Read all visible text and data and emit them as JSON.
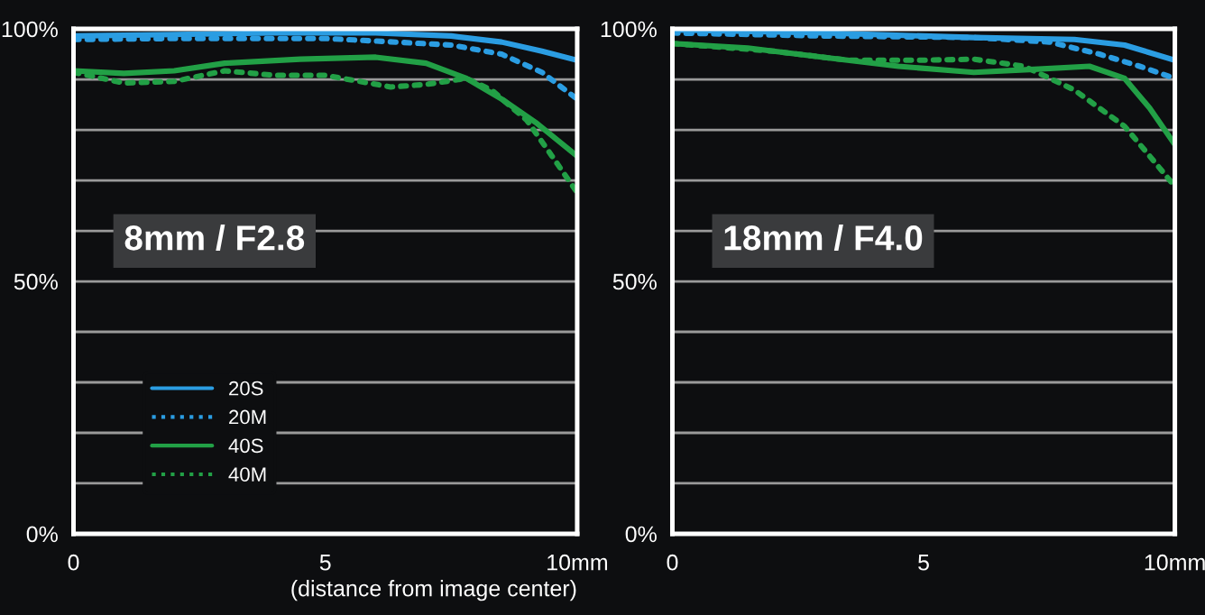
{
  "chart_data": [
    {
      "type": "line",
      "annotations": [
        "8mm / F2.8"
      ],
      "xlabel": "(distance from image center)",
      "xlim": [
        0,
        10
      ],
      "xticks": [
        0,
        5,
        {
          "value": 10,
          "label": "10mm"
        }
      ],
      "ylim": [
        0,
        100
      ],
      "yticks": [
        {
          "value": 0,
          "label": "0%"
        },
        {
          "value": 10,
          "label": null
        },
        {
          "value": 20,
          "label": null
        },
        {
          "value": 30,
          "label": null
        },
        {
          "value": 40,
          "label": null
        },
        {
          "value": 50,
          "label": "50%"
        },
        {
          "value": 60,
          "label": null
        },
        {
          "value": 70,
          "label": null
        },
        {
          "value": 80,
          "label": null
        },
        {
          "value": 90,
          "label": null
        },
        {
          "value": 100,
          "label": "100%"
        }
      ],
      "grid": "y",
      "legend": "bottom left",
      "series": [
        {
          "name": "20S",
          "color": "#2b9de2",
          "line_style": "solid",
          "x": [
            0,
            2,
            4,
            6,
            7.5,
            8.5,
            9.3,
            10
          ],
          "values": [
            98.6,
            98.9,
            99.2,
            99.2,
            98.6,
            97.4,
            95.6,
            93.8
          ]
        },
        {
          "name": "20M",
          "color": "#2b9de2",
          "line_style": "dotted",
          "x": [
            0,
            2,
            5,
            6,
            7.5,
            8.5,
            9.3,
            10
          ],
          "values": [
            97.9,
            98.1,
            98.1,
            97.6,
            96.8,
            95,
            91.4,
            86.1
          ]
        },
        {
          "name": "40S",
          "color": "#22a046",
          "line_style": "solid",
          "x": [
            0,
            1,
            2,
            3,
            4.5,
            6,
            7,
            7.8,
            8.5,
            9.2,
            10
          ],
          "values": [
            91.7,
            91.2,
            91.7,
            93.2,
            94,
            94.4,
            93.2,
            90.2,
            86.1,
            81.3,
            74.8
          ]
        },
        {
          "name": "40M",
          "color": "#22a046",
          "line_style": "dotted",
          "x": [
            0,
            1,
            2,
            3,
            4,
            5,
            6.3,
            7,
            7.8,
            8.3,
            9,
            9.5,
            10
          ],
          "values": [
            91.4,
            89.3,
            89.6,
            91.7,
            90.8,
            90.8,
            88.5,
            89,
            90.2,
            87.9,
            81.9,
            74.8,
            67.6
          ]
        }
      ]
    },
    {
      "type": "line",
      "annotations": [
        "18mm / F4.0"
      ],
      "xlim": [
        0,
        10
      ],
      "xticks": [
        0,
        5,
        {
          "value": 10,
          "label": "10mm"
        }
      ],
      "ylim": [
        0,
        100
      ],
      "yticks": [
        {
          "value": 0,
          "label": "0%"
        },
        {
          "value": 10,
          "label": null
        },
        {
          "value": 20,
          "label": null
        },
        {
          "value": 30,
          "label": null
        },
        {
          "value": 40,
          "label": null
        },
        {
          "value": 50,
          "label": "50%"
        },
        {
          "value": 60,
          "label": null
        },
        {
          "value": 70,
          "label": null
        },
        {
          "value": 80,
          "label": null
        },
        {
          "value": 90,
          "label": null
        },
        {
          "value": 100,
          "label": "100%"
        }
      ],
      "grid": "y",
      "series": [
        {
          "color": "#2b9de2",
          "line_style": "solid",
          "x": [
            0,
            3,
            6,
            8,
            9,
            10
          ],
          "values": [
            99.8,
            99.2,
            98.3,
            97.9,
            96.8,
            93.8
          ]
        },
        {
          "color": "#2b9de2",
          "line_style": "dotted",
          "x": [
            0,
            3,
            6,
            7.5,
            8.5,
            9.3,
            10
          ],
          "values": [
            99.2,
            98.6,
            98.3,
            97.4,
            95,
            92.6,
            90.2
          ]
        },
        {
          "color": "#22a046",
          "line_style": "solid",
          "x": [
            0,
            1.5,
            3,
            4.5,
            6,
            7.2,
            8.3,
            9,
            9.5,
            10
          ],
          "values": [
            97.1,
            96.2,
            94.4,
            92.6,
            91.4,
            92,
            92.6,
            90.2,
            84.3,
            77.1
          ]
        },
        {
          "color": "#22a046",
          "line_style": "dotted",
          "x": [
            0,
            2,
            3.5,
            5,
            6,
            7,
            8,
            9,
            9.5,
            10
          ],
          "values": [
            97.1,
            95.6,
            93.8,
            93.8,
            94,
            92.6,
            87.9,
            80.7,
            74.8,
            68.8
          ]
        }
      ]
    }
  ]
}
